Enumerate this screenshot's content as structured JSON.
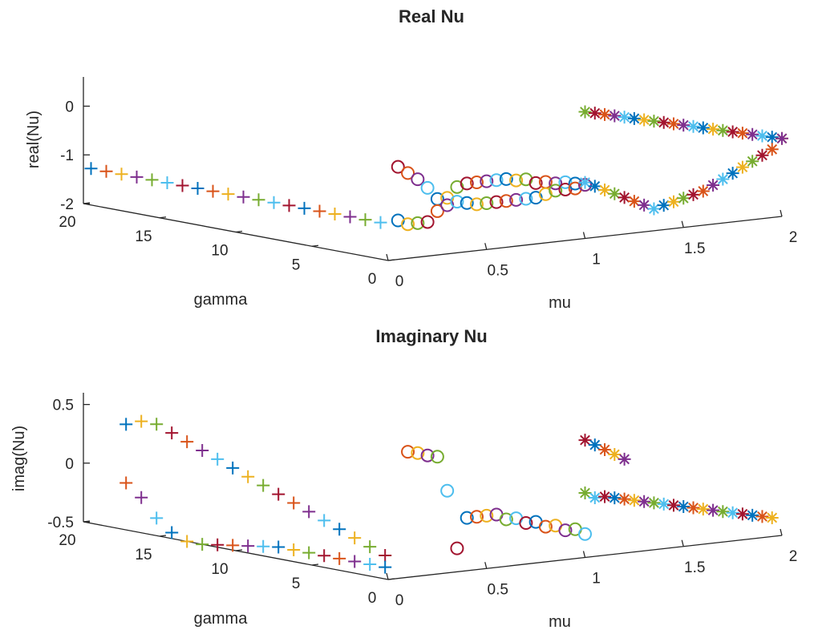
{
  "colors": [
    "#0072BD",
    "#D95319",
    "#EDB120",
    "#7E2F8E",
    "#77AC30",
    "#4DBEEE",
    "#A2142F"
  ],
  "marker_legend": {
    "plus": "+",
    "circle": "o",
    "asterisk": "*"
  },
  "chart_data": [
    {
      "type": "scatter3d",
      "title": "Real Nu",
      "xlabel": "mu",
      "ylabel": "gamma",
      "zlabel": "real(Nu)",
      "xlim": [
        0,
        2
      ],
      "ylim": [
        0,
        20
      ],
      "zlim": [
        -2,
        0.6
      ],
      "xticks": [
        "0",
        "0.5",
        "1",
        "1.5",
        "2"
      ],
      "yticks": [
        "0",
        "5",
        "10",
        "15",
        "20"
      ],
      "zticks": [
        "-2",
        "-1",
        "0"
      ],
      "grid": false,
      "series": [
        {
          "marker": "plus",
          "mu": 0,
          "gamma": [
            19.5,
            18.5,
            17.5,
            16.5,
            15.5,
            14.5,
            13.5,
            12.5,
            11.5,
            10.5,
            9.5,
            8.5,
            7.5,
            6.5,
            5.5,
            4.5,
            3.5,
            2.5,
            1.5,
            0.5
          ],
          "z": -1.25
        },
        {
          "marker": "circle",
          "gamma": 0,
          "mu": [
            0.05,
            0.1,
            0.15,
            0.2,
            0.25,
            0.3,
            0.35,
            0.4,
            0.45,
            0.5,
            0.55,
            0.6,
            0.65,
            0.7,
            0.75,
            0.8,
            0.85,
            0.9,
            0.95,
            1.0
          ],
          "z_upper": [
            -0.1,
            -0.25,
            -0.4,
            -0.6,
            -0.85,
            -0.85,
            -0.65,
            -0.6,
            -0.6,
            -0.6,
            -0.6,
            -0.6,
            -0.65,
            -0.65,
            -0.75,
            -0.75,
            -0.8,
            -0.8,
            -0.85,
            -0.9
          ],
          "z_lower": [
            -1.2,
            -1.3,
            -1.3,
            -1.3,
            -1.1,
            -1.0,
            -0.95,
            -1.0,
            -1.05,
            -1.05,
            -1.05,
            -1.05,
            -1.05,
            -1.05,
            -1.05,
            -1.0,
            -0.95,
            -0.95,
            -0.95,
            -0.9
          ]
        },
        {
          "marker": "asterisk",
          "gamma": 0,
          "mu": [
            1.0,
            1.05,
            1.1,
            1.15,
            1.2,
            1.25,
            1.3,
            1.35,
            1.4,
            1.45,
            1.5,
            1.55,
            1.6,
            1.65,
            1.7,
            1.75,
            1.8,
            1.85,
            1.9,
            1.95,
            2.0
          ],
          "z_upper": [
            0.6,
            0.55,
            0.5,
            0.45,
            0.4,
            0.35,
            0.3,
            0.25,
            0.2,
            0.15,
            0.1,
            0.05,
            0.0,
            -0.05,
            -0.1,
            -0.15,
            -0.2,
            -0.25,
            -0.3,
            -0.35,
            -0.4
          ],
          "z_lower": [
            -0.85,
            -0.95,
            -1.05,
            -1.15,
            -1.25,
            -1.35,
            -1.45,
            -1.55,
            -1.5,
            -1.45,
            -1.4,
            -1.35,
            -1.3,
            -1.2,
            -1.1,
            -1.0,
            -0.9,
            -0.8,
            -0.7,
            -0.6,
            -0.4
          ]
        }
      ]
    },
    {
      "type": "scatter3d",
      "title": "Imaginary Nu",
      "xlabel": "mu",
      "ylabel": "gamma",
      "zlabel": "imag(Nu)",
      "xlim": [
        0,
        2
      ],
      "ylim": [
        0,
        20
      ],
      "zlim": [
        -0.5,
        0.6
      ],
      "xticks": [
        "0",
        "0.5",
        "1",
        "1.5",
        "2"
      ],
      "yticks": [
        "0",
        "5",
        "10",
        "15",
        "20"
      ],
      "zticks": [
        "-0.5",
        "0",
        "0.5"
      ],
      "grid": false,
      "series": [
        {
          "marker": "plus",
          "mu": 0,
          "gamma": [
            17.2,
            16.2,
            15.2,
            14.2,
            13.2,
            12.2,
            11.2,
            10.2,
            9.2,
            8.2,
            7.2,
            6.2,
            5.2,
            4.2,
            3.2,
            2.2,
            1.2,
            0.2
          ],
          "z_upper": [
            0.4,
            0.45,
            0.45,
            0.4,
            0.35,
            0.3,
            0.25,
            0.2,
            0.15,
            0.1,
            0.05,
            0.0,
            -0.05,
            -0.1,
            -0.15,
            -0.2,
            -0.25,
            -0.3
          ],
          "z_lower": [
            -0.1,
            -0.2,
            -0.35,
            -0.45,
            -0.5,
            -0.5,
            -0.48,
            -0.46,
            -0.44,
            -0.42,
            -0.4,
            -0.4,
            -0.4,
            -0.4,
            -0.4,
            -0.4,
            -0.4,
            -0.4
          ]
        },
        {
          "marker": "circle",
          "gamma": 0,
          "mu": [
            0.1,
            0.15,
            0.2,
            0.25,
            0.3,
            0.35,
            0.4,
            0.45,
            0.5,
            0.55,
            0.6,
            0.65,
            0.7,
            0.75,
            0.8,
            0.85,
            0.9,
            0.95,
            1.0
          ],
          "z": [
            0.57,
            0.55,
            0.52,
            0.5,
            0.2,
            -0.3,
            -0.05,
            -0.05,
            -0.05,
            -0.05,
            -0.1,
            -0.1,
            -0.15,
            -0.15,
            -0.2,
            -0.2,
            -0.25,
            -0.25,
            -0.3
          ]
        },
        {
          "marker": "asterisk",
          "gamma": 0,
          "mu_a": [
            1.0,
            1.05,
            1.1,
            1.15,
            1.2
          ],
          "z_a": [
            0.5,
            0.45,
            0.4,
            0.35,
            0.3
          ],
          "mu_b": [
            1.0,
            1.05,
            1.1,
            1.15,
            1.2,
            1.25,
            1.3,
            1.35,
            1.4,
            1.45,
            1.5,
            1.55,
            1.6,
            1.65,
            1.7,
            1.75,
            1.8,
            1.85,
            1.9,
            1.95
          ],
          "z_b": [
            0.05,
            0.0,
            0.0,
            -0.02,
            -0.04,
            -0.06,
            -0.08,
            -0.1,
            -0.12,
            -0.14,
            -0.16,
            -0.18,
            -0.2,
            -0.22,
            -0.24,
            -0.26,
            -0.28,
            -0.3,
            -0.32,
            -0.34
          ]
        }
      ]
    }
  ]
}
